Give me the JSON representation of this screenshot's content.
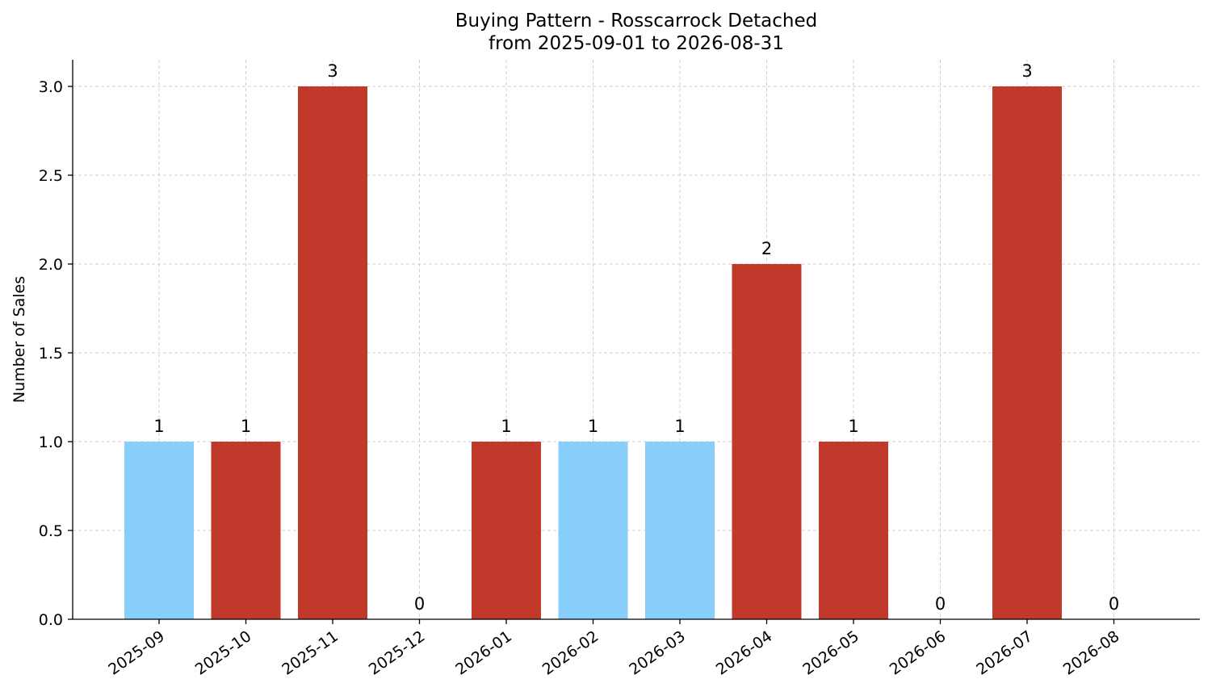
{
  "chart_data": {
    "type": "bar",
    "title": "Buying Pattern - Rosscarrock Detached",
    "subtitle": "from 2025-09-01 to 2026-08-31",
    "xlabel": "",
    "ylabel": "Number of Sales",
    "ylim": [
      0,
      3.15
    ],
    "yticks": [
      "0.0",
      "0.5",
      "1.0",
      "1.5",
      "2.0",
      "2.5",
      "3.0"
    ],
    "grid": true,
    "categories": [
      "2025-09",
      "2025-10",
      "2025-11",
      "2025-12",
      "2026-01",
      "2026-02",
      "2026-03",
      "2026-04",
      "2026-05",
      "2026-06",
      "2026-07",
      "2026-08"
    ],
    "values": [
      1,
      1,
      3,
      0,
      1,
      1,
      1,
      2,
      1,
      0,
      3,
      0
    ],
    "data_labels": [
      "1",
      "1",
      "3",
      "0",
      "1",
      "1",
      "1",
      "2",
      "1",
      "0",
      "3",
      "0"
    ],
    "bar_colors": [
      "#87cefa",
      "#c0392b",
      "#c0392b",
      "#c0392b",
      "#c0392b",
      "#87cefa",
      "#87cefa",
      "#c0392b",
      "#c0392b",
      "#c0392b",
      "#c0392b",
      "#c0392b"
    ]
  }
}
